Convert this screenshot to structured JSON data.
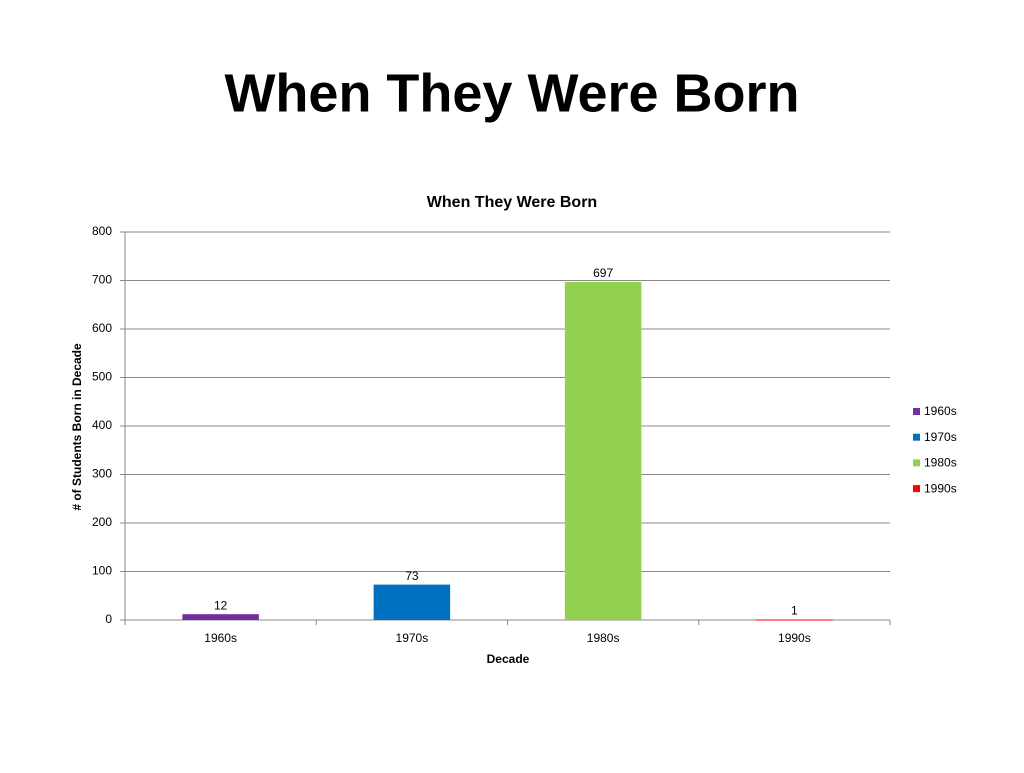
{
  "slide_title": "When They Were Born",
  "chart_data": {
    "type": "bar",
    "title": "When They Were Born",
    "x_label": "Decade",
    "y_label": "# of Students Born in Decade",
    "categories": [
      "1960s",
      "1970s",
      "1980s",
      "1990s"
    ],
    "values": [
      12,
      73,
      697,
      1
    ],
    "colors": [
      "#7030a0",
      "#0070c0",
      "#92d050",
      "#ff0000"
    ],
    "ylim": [
      0,
      800
    ],
    "yticks": [
      0,
      100,
      200,
      300,
      400,
      500,
      600,
      700,
      800
    ],
    "grid": true,
    "legend": "right"
  }
}
